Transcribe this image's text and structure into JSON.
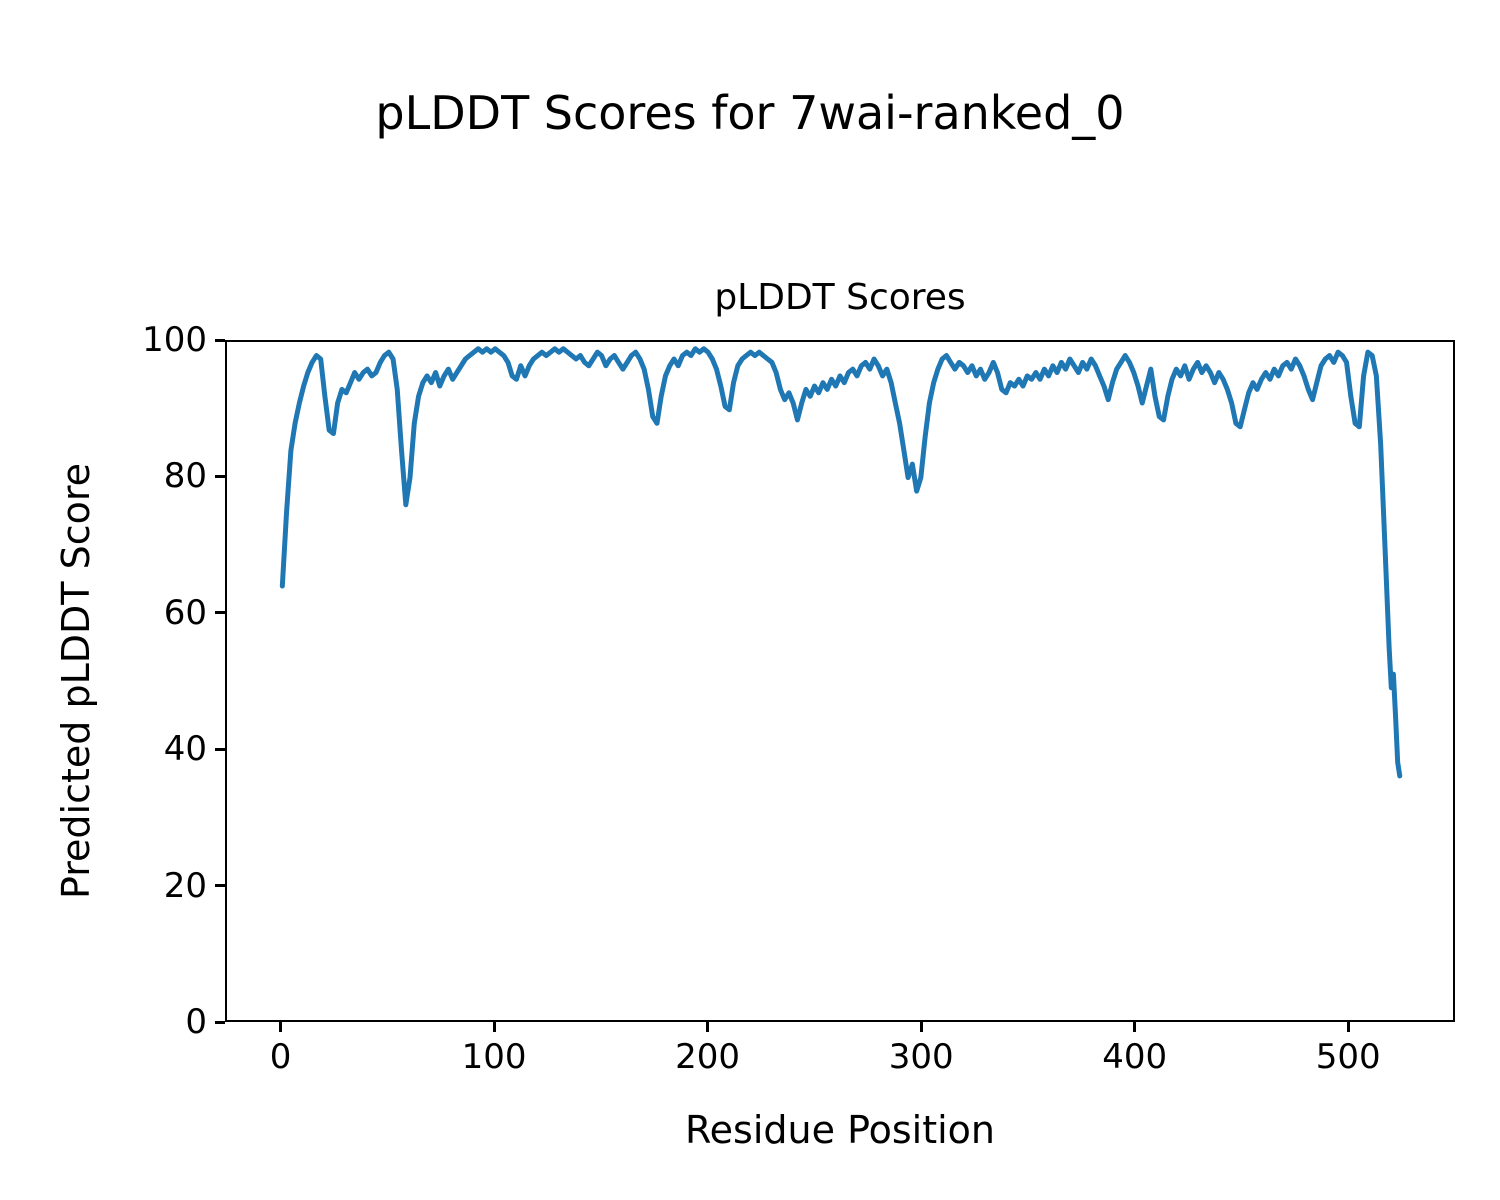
{
  "chart_data": {
    "type": "line",
    "suptitle": "pLDDT Scores for 7wai-ranked_0",
    "title": "pLDDT Scores",
    "xlabel": "Residue Position",
    "ylabel": "Predicted pLDDT Score",
    "xlim": [
      -26,
      550
    ],
    "ylim": [
      0,
      100
    ],
    "x_ticks": [
      0,
      100,
      200,
      300,
      400,
      500
    ],
    "y_ticks": [
      0,
      20,
      40,
      60,
      80,
      100
    ],
    "grid": false,
    "legend": "none",
    "line_color": "#1f77b4",
    "line_width": 5,
    "series": [
      {
        "name": "pLDDT",
        "x": [
          0,
          2,
          4,
          6,
          8,
          10,
          12,
          14,
          16,
          18,
          20,
          22,
          24,
          26,
          28,
          30,
          32,
          34,
          36,
          38,
          40,
          42,
          44,
          46,
          48,
          50,
          52,
          54,
          56,
          58,
          60,
          62,
          64,
          66,
          68,
          70,
          72,
          74,
          76,
          78,
          80,
          82,
          84,
          86,
          88,
          90,
          92,
          94,
          96,
          98,
          100,
          102,
          104,
          106,
          108,
          110,
          112,
          114,
          116,
          118,
          120,
          122,
          124,
          126,
          128,
          130,
          132,
          134,
          136,
          138,
          140,
          142,
          144,
          146,
          148,
          150,
          152,
          154,
          156,
          158,
          160,
          162,
          164,
          166,
          168,
          170,
          172,
          174,
          176,
          178,
          180,
          182,
          184,
          186,
          188,
          190,
          192,
          194,
          196,
          198,
          200,
          202,
          204,
          206,
          208,
          210,
          212,
          214,
          216,
          218,
          220,
          222,
          224,
          226,
          228,
          230,
          232,
          234,
          236,
          238,
          240,
          242,
          244,
          246,
          248,
          250,
          252,
          254,
          256,
          258,
          260,
          262,
          264,
          266,
          268,
          270,
          272,
          274,
          276,
          278,
          280,
          282,
          284,
          286,
          288,
          290,
          292,
          294,
          296,
          298,
          300,
          302,
          304,
          306,
          308,
          310,
          312,
          314,
          316,
          318,
          320,
          322,
          324,
          326,
          328,
          330,
          332,
          334,
          336,
          338,
          340,
          342,
          344,
          346,
          348,
          350,
          352,
          354,
          356,
          358,
          360,
          362,
          364,
          366,
          368,
          370,
          372,
          374,
          376,
          378,
          380,
          382,
          384,
          386,
          388,
          390,
          392,
          394,
          396,
          398,
          400,
          402,
          404,
          406,
          408,
          410,
          412,
          414,
          416,
          418,
          420,
          422,
          424,
          426,
          428,
          430,
          432,
          434,
          436,
          438,
          440,
          442,
          444,
          446,
          448,
          450,
          452,
          454,
          456,
          458,
          460,
          462,
          464,
          466,
          468,
          470,
          472,
          474,
          476,
          478,
          480,
          482,
          484,
          486,
          488,
          490,
          492,
          494,
          496,
          498,
          500,
          502,
          504,
          506,
          508,
          510,
          512,
          514,
          516,
          518,
          520,
          521,
          522,
          523,
          524,
          525
        ],
        "y": [
          64,
          75,
          84,
          88,
          91,
          93.5,
          95.5,
          97,
          98,
          97.5,
          92,
          87,
          86.5,
          91,
          93,
          92.5,
          94,
          95.5,
          94.5,
          95.5,
          96,
          95,
          95.5,
          97,
          98,
          98.5,
          97.5,
          93,
          84,
          76,
          80,
          88,
          92,
          94,
          95,
          94,
          95.5,
          93.5,
          95,
          96,
          94.5,
          95.5,
          96.5,
          97.5,
          98,
          98.5,
          99,
          98.5,
          99,
          98.5,
          99,
          98.5,
          98,
          97,
          95,
          94.5,
          96.5,
          95,
          96.5,
          97.5,
          98,
          98.5,
          98,
          98.5,
          99,
          98.5,
          99,
          98.5,
          98,
          97.5,
          98,
          97,
          96.5,
          97.5,
          98.5,
          98,
          96.5,
          97.5,
          98,
          97,
          96,
          97,
          98,
          98.5,
          97.5,
          96,
          93,
          89,
          88,
          92,
          95,
          96.5,
          97.5,
          96.5,
          98,
          98.5,
          98,
          99,
          98.5,
          99,
          98.5,
          97.5,
          96,
          93.5,
          90.5,
          90,
          94,
          96.5,
          97.5,
          98,
          98.5,
          98,
          98.5,
          98,
          97.5,
          97,
          95.5,
          93,
          91.5,
          92.5,
          91,
          88.5,
          91,
          93,
          92,
          93.5,
          92.5,
          94,
          93,
          94.5,
          93.5,
          95,
          94,
          95.5,
          96,
          95,
          96.5,
          97,
          96,
          97.5,
          96.5,
          95,
          96,
          94,
          91,
          88,
          84,
          80,
          82,
          78,
          80,
          86,
          91,
          94,
          96,
          97.5,
          98,
          97,
          96,
          97,
          96.5,
          95.5,
          96.5,
          95,
          96,
          94.5,
          95.5,
          97,
          95.5,
          93,
          92.5,
          94,
          93.5,
          94.5,
          93.5,
          95,
          94.5,
          95.5,
          94.5,
          96,
          95,
          96.5,
          95.5,
          97,
          96,
          97.5,
          96.5,
          95.5,
          97,
          96,
          97.5,
          96.5,
          95,
          93.5,
          91.5,
          94,
          96,
          97,
          98,
          97,
          95.5,
          93.5,
          91,
          93.5,
          96,
          92,
          89,
          88.5,
          92,
          94.5,
          96,
          95,
          96.5,
          94.5,
          96,
          97,
          95.5,
          96.5,
          95.5,
          94,
          95.5,
          94.5,
          93,
          91,
          88,
          87.5,
          90,
          92.5,
          94,
          93,
          94.5,
          95.5,
          94.5,
          96,
          95,
          96.5,
          97,
          96,
          97.5,
          96.5,
          95,
          93,
          91.5,
          94,
          96.5,
          97.5,
          98,
          97,
          98.5,
          98,
          97,
          92,
          88,
          87.5,
          95,
          98.5,
          98,
          95,
          85,
          70,
          55,
          49,
          51,
          45,
          38,
          36
        ]
      }
    ]
  }
}
